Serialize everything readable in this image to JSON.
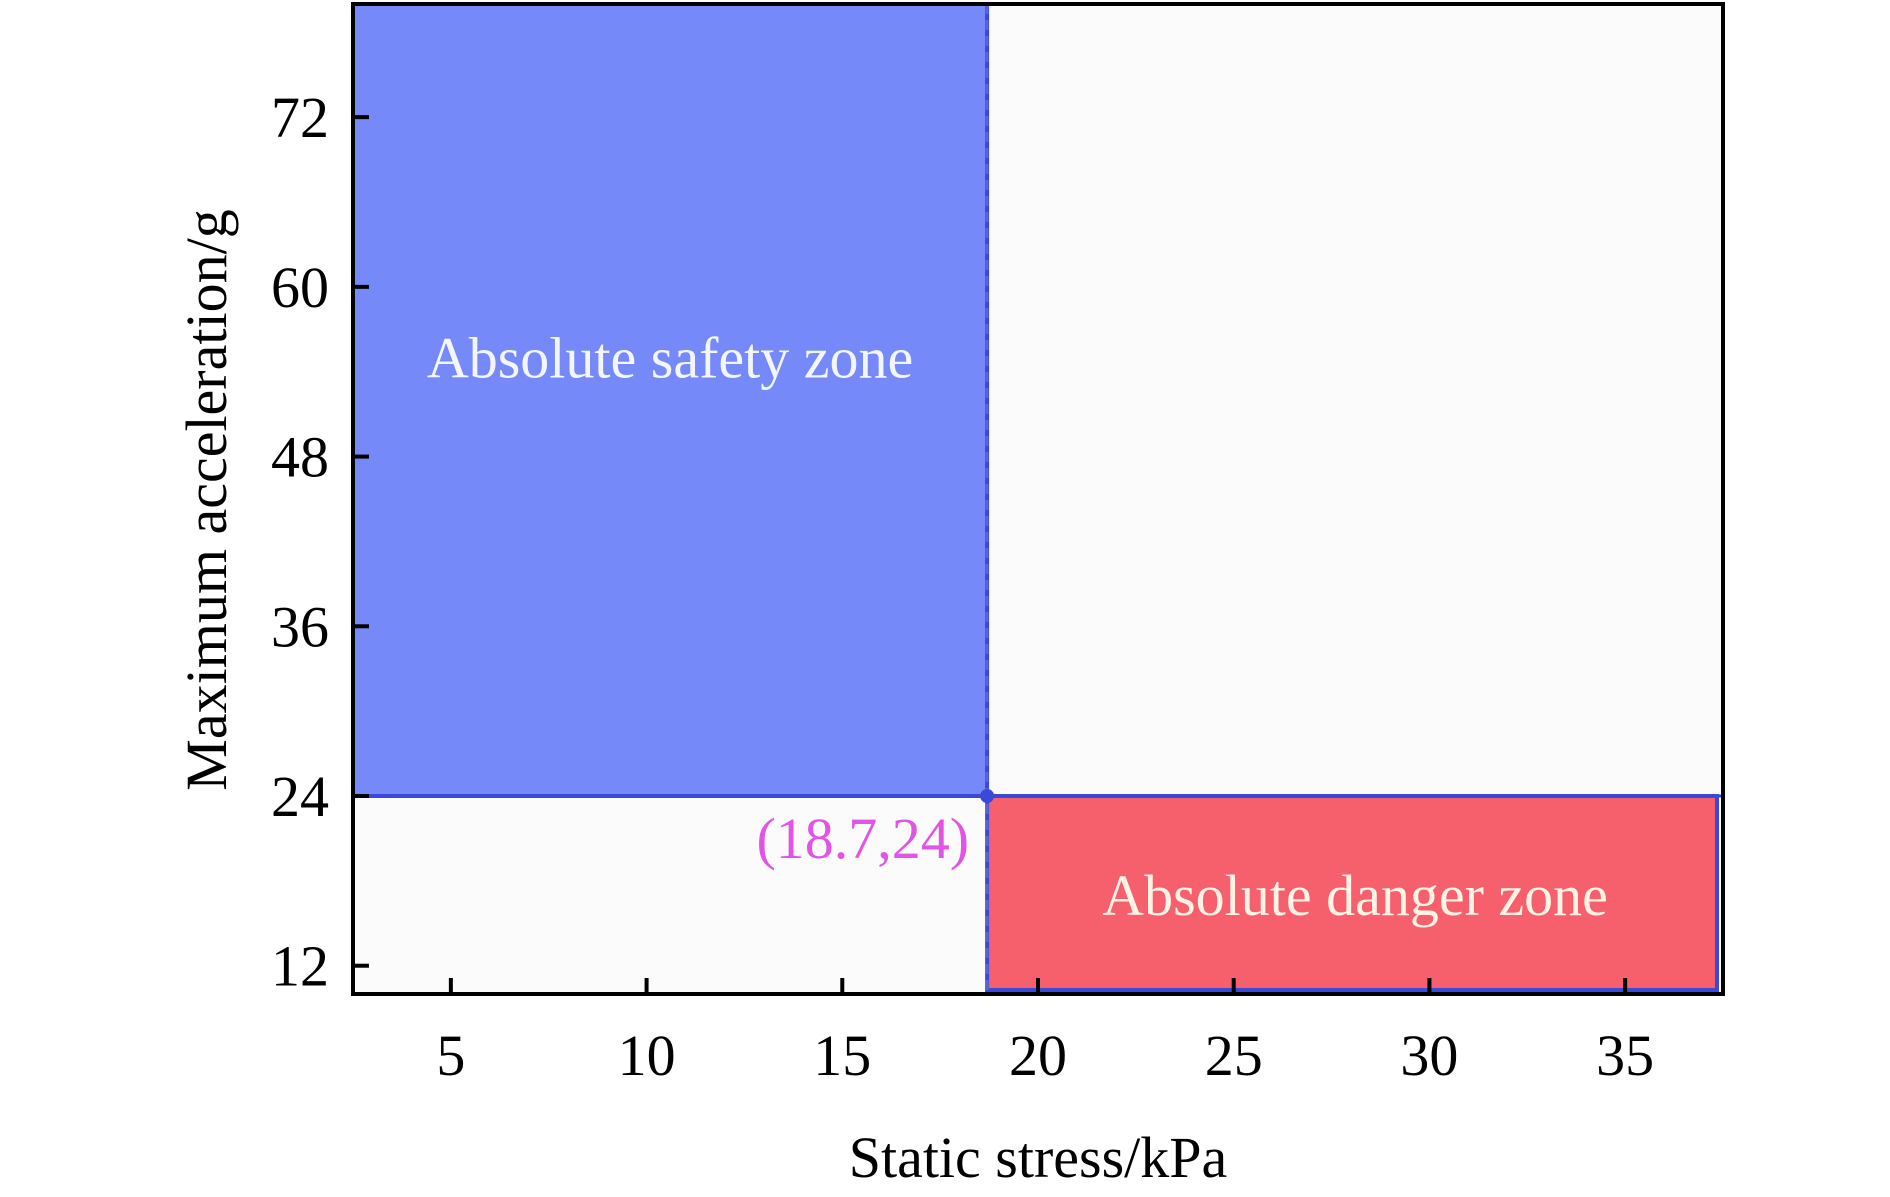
{
  "chart_data": {
    "type": "area",
    "xlabel": "Static stress/kPa",
    "ylabel": "Maximum acceleration/g",
    "xlim": [
      2.5,
      37.5
    ],
    "ylim": [
      10,
      80
    ],
    "xticks": [
      5,
      10,
      15,
      20,
      25,
      30,
      35
    ],
    "yticks": [
      12,
      24,
      36,
      48,
      60,
      72
    ],
    "grid": false,
    "zones": [
      {
        "name": "Absolute safety zone",
        "x": [
          2.5,
          18.7
        ],
        "y": [
          24,
          80
        ],
        "color": "#7689F9"
      },
      {
        "name": "Absolute danger zone",
        "x": [
          18.7,
          37.5
        ],
        "y": [
          10,
          24
        ],
        "color": "#F6606D"
      }
    ],
    "point": {
      "x": 18.7,
      "y": 24,
      "label": "(18.7,24)",
      "color": "#E154E6"
    }
  }
}
